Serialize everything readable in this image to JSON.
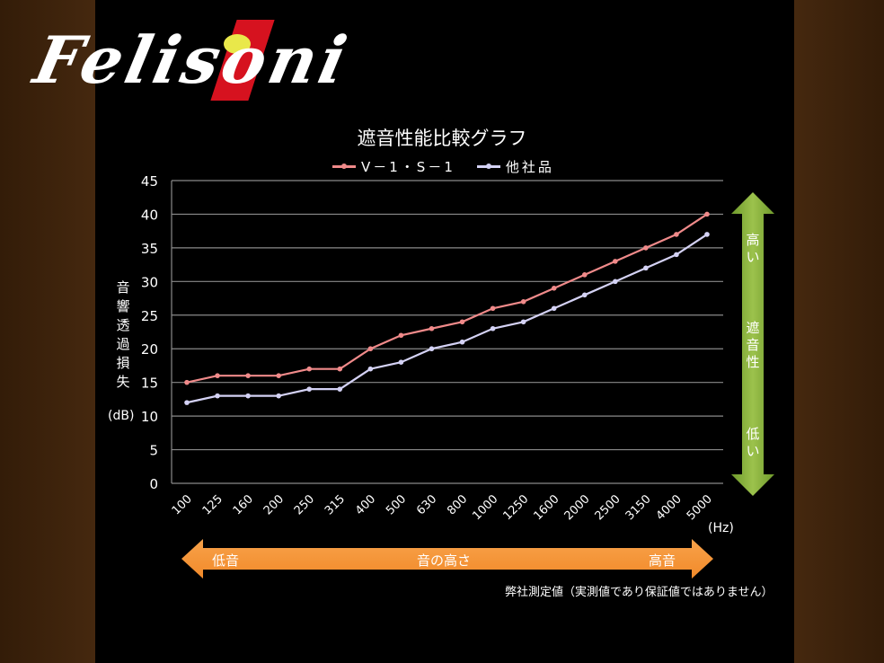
{
  "brand": {
    "logo_text": "Felisoni",
    "colors": {
      "stripe": "#d6121f",
      "dot": "#e9e84a"
    }
  },
  "chart_data": {
    "type": "line",
    "title": "遮音性能比較グラフ",
    "xlabel": "(Hz)",
    "ylabel": "音響透過損失",
    "ylabel_unit": "(dB)",
    "categories": [
      "100",
      "125",
      "160",
      "200",
      "250",
      "315",
      "400",
      "500",
      "630",
      "800",
      "1000",
      "1250",
      "1600",
      "2000",
      "2500",
      "3150",
      "4000",
      "5000"
    ],
    "series": [
      {
        "name": "V－1・S－1",
        "color": "#f08a8a",
        "values": [
          15,
          16,
          16,
          16,
          17,
          17,
          20,
          22,
          23,
          24,
          26,
          27,
          29,
          31,
          33,
          35,
          37,
          40
        ]
      },
      {
        "name": "他社品",
        "color": "#d4d2f5",
        "values": [
          12,
          13,
          13,
          13,
          14,
          14,
          17,
          18,
          20,
          21,
          23,
          24,
          26,
          28,
          30,
          32,
          34,
          37
        ]
      }
    ],
    "yticks": [
      0,
      5,
      10,
      15,
      20,
      25,
      30,
      35,
      40,
      45
    ],
    "ylim": [
      0,
      45
    ],
    "grid": true,
    "legend_position": "top"
  },
  "legend": {
    "items": [
      {
        "label": "V－1・S－1",
        "color": "#f08a8a"
      },
      {
        "label": "他社品",
        "color": "#d4d2f5"
      }
    ]
  },
  "pitch_arrow": {
    "left": "低音",
    "center": "音の高さ",
    "right": "高音",
    "color": "#f28a2a"
  },
  "performance_arrow": {
    "top": "高い",
    "middle": "遮音性",
    "bottom": "低い",
    "color": "#7fa73a"
  },
  "note": "弊社測定値（実測値であり保証値ではありません）"
}
